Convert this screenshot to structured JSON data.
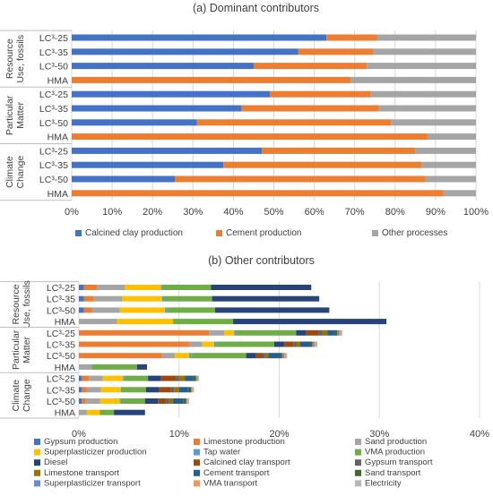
{
  "chart_data": [
    {
      "type": "bar",
      "orientation": "horizontal",
      "stacked": true,
      "title": "(a) Dominant  contributors",
      "groups": [
        {
          "name": "Resource Use, fossils",
          "label_lines": [
            "Resource",
            "Use, fossils"
          ],
          "categories": [
            "LC³-25",
            "LC³-35",
            "LC³-50",
            "HMA"
          ]
        },
        {
          "name": "Particular Matter",
          "label_lines": [
            "Particular",
            "Matter"
          ],
          "categories": [
            "LC³-25",
            "LC³-35",
            "LC³-50",
            "HMA"
          ]
        },
        {
          "name": "Climate Change",
          "label_lines": [
            "Climate",
            "Change"
          ],
          "categories": [
            "LC³-25",
            "LC³-35",
            "LC³-50",
            "HMA"
          ]
        }
      ],
      "series": [
        {
          "name": "Calcined clay production",
          "color": "#4472C4",
          "values": [
            63,
            56,
            45,
            0,
            49,
            42,
            31,
            0,
            47,
            37.5,
            25.5,
            0
          ]
        },
        {
          "name": "Cement production",
          "color": "#ED7D31",
          "values": [
            12.5,
            18.5,
            28,
            69,
            25,
            34,
            48,
            88,
            38,
            49,
            62,
            92
          ]
        },
        {
          "name": "Other processes",
          "color": "#A5A5A5",
          "values": [
            24.5,
            25.5,
            27,
            31,
            26,
            24,
            21,
            12,
            15,
            13.5,
            12.5,
            8
          ]
        }
      ],
      "xlim": [
        0,
        100
      ],
      "x_ticks": [
        "0%",
        "10%",
        "20%",
        "30%",
        "40%",
        "50%",
        "60%",
        "70%",
        "80%",
        "90%",
        "100%"
      ],
      "grid": true,
      "legend": "bottom"
    },
    {
      "type": "bar",
      "orientation": "horizontal",
      "stacked": true,
      "title": "(b) Other contributors",
      "groups": [
        {
          "name": "Resource Use, fossils",
          "label_lines": [
            "Resource",
            "Use, fossils"
          ],
          "categories": [
            "LC³-25",
            "LC³-35",
            "LC³-50",
            "HMA"
          ]
        },
        {
          "name": "Particular Matter",
          "label_lines": [
            "Particular",
            "Matter"
          ],
          "categories": [
            "LC³-25",
            "LC³-35",
            "LC³-50",
            "HMA"
          ]
        },
        {
          "name": "Climate Change",
          "label_lines": [
            "Climate",
            "Change"
          ],
          "categories": [
            "LC³-25",
            "LC³-35",
            "LC³-50",
            "HMA"
          ]
        }
      ],
      "series": [
        {
          "name": "Gypsum production",
          "color": "#4472C4",
          "values": [
            0.5,
            0.5,
            0.5,
            0,
            0,
            0,
            0,
            0,
            0.3,
            0.3,
            0.3,
            0
          ]
        },
        {
          "name": "Limestone production",
          "color": "#ED7D31",
          "values": [
            1.3,
            1.0,
            0.8,
            0,
            13.0,
            11.0,
            8.3,
            0,
            0.7,
            0.5,
            0.4,
            0
          ]
        },
        {
          "name": "Sand production",
          "color": "#A5A5A5",
          "values": [
            2.8,
            2.8,
            2.8,
            3.8,
            1.5,
            1.3,
            1.3,
            1.3,
            1.4,
            1.4,
            1.4,
            0.8
          ]
        },
        {
          "name": "Superplasticizer production",
          "color": "#FFC000",
          "values": [
            3.6,
            4.0,
            4.5,
            5.6,
            1.0,
            1.2,
            1.4,
            0,
            2.0,
            2.0,
            2.0,
            1.3
          ]
        },
        {
          "name": "Tap water",
          "color": "#5B9BD5",
          "values": [
            0.2,
            0.2,
            0.2,
            0,
            0.2,
            0.2,
            0.2,
            0,
            0.1,
            0.1,
            0.1,
            0
          ]
        },
        {
          "name": "VMA production",
          "color": "#70AD47",
          "values": [
            4.8,
            4.8,
            4.8,
            6.0,
            6.0,
            5.8,
            5.5,
            4.5,
            2.4,
            2.4,
            2.4,
            1.4
          ]
        },
        {
          "name": "Diesel",
          "color": "#264478",
          "values": [
            10.0,
            10.7,
            11.4,
            15.3,
            1.0,
            1.0,
            1.0,
            1.0,
            1.3,
            1.3,
            1.3,
            3.1
          ]
        },
        {
          "name": "Calcined clay transport",
          "color": "#9E480E",
          "values": [
            0,
            0,
            0,
            0,
            1.2,
            0.9,
            0.6,
            0,
            1.5,
            1.2,
            0.8,
            0
          ]
        },
        {
          "name": "Gypsum transport",
          "color": "#636363",
          "values": [
            0,
            0,
            0,
            0,
            0.4,
            0.3,
            0.3,
            0,
            0.3,
            0.3,
            0.3,
            0
          ]
        },
        {
          "name": "Limestone transport",
          "color": "#997300",
          "values": [
            0,
            0,
            0,
            0,
            0.5,
            0.4,
            0.3,
            0,
            0.6,
            0.5,
            0.4,
            0
          ]
        },
        {
          "name": "Cement transport",
          "color": "#255E91",
          "values": [
            0,
            0,
            0,
            0,
            0.7,
            0.9,
            1.1,
            0,
            0.8,
            0.9,
            1.0,
            0
          ]
        },
        {
          "name": "Sand transport",
          "color": "#43682B",
          "values": [
            0,
            0,
            0,
            0,
            0.3,
            0.3,
            0.3,
            0,
            0.3,
            0.3,
            0.3,
            0
          ]
        },
        {
          "name": "Superplasticizer transport",
          "color": "#698ED0",
          "values": [
            0,
            0,
            0,
            0,
            0.2,
            0.2,
            0.2,
            0,
            0.1,
            0.1,
            0.1,
            0
          ]
        },
        {
          "name": "VMA transport",
          "color": "#F1975A",
          "values": [
            0,
            0,
            0,
            0,
            0.2,
            0.2,
            0.2,
            0,
            0.1,
            0.1,
            0.1,
            0
          ]
        },
        {
          "name": "Electricity",
          "color": "#B7B7B7",
          "values": [
            0,
            0,
            0,
            0,
            0.1,
            0.1,
            0.1,
            0,
            0.1,
            0.1,
            0.1,
            0
          ]
        }
      ],
      "xlim": [
        0,
        40
      ],
      "x_ticks": [
        "0%",
        "10%",
        "20%",
        "30%",
        "40%"
      ],
      "grid": true,
      "legend": "bottom"
    }
  ]
}
